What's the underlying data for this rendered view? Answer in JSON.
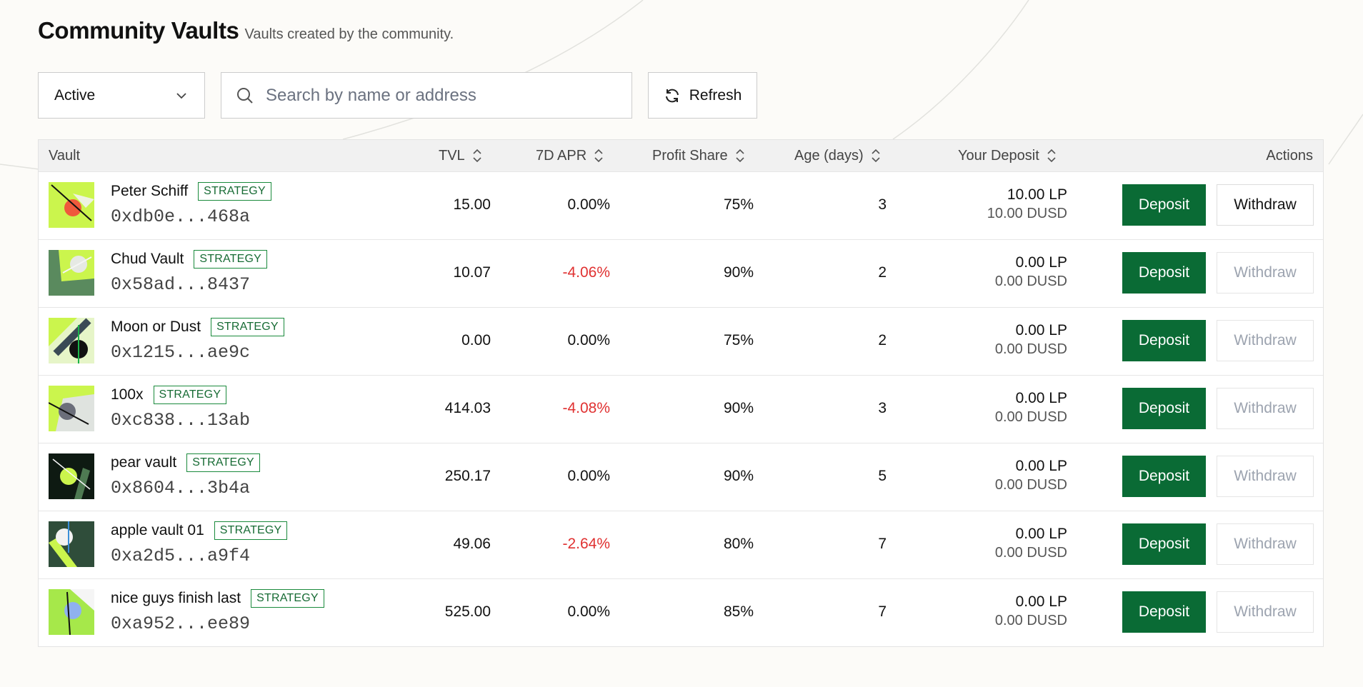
{
  "header": {
    "title": "Community Vaults",
    "subtitle": "Vaults created by the community."
  },
  "toolbar": {
    "filter_value": "Active",
    "search_placeholder": "Search by name or address",
    "refresh_label": "Refresh"
  },
  "table": {
    "columns": {
      "vault": "Vault",
      "tvl": "TVL",
      "apr": "7D APR",
      "profit_share": "Profit Share",
      "age": "Age (days)",
      "your_deposit": "Your Deposit",
      "actions": "Actions"
    },
    "badge_label": "STRATEGY",
    "deposit_label": "Deposit",
    "withdraw_label": "Withdraw",
    "rows": [
      {
        "name": "Peter Schiff",
        "address": "0xdb0e...468a",
        "tvl": "15.00",
        "apr": "0.00%",
        "profit_share": "75%",
        "age": "3",
        "deposit_lp": "10.00 LP",
        "deposit_usd": "10.00 DUSD"
      },
      {
        "name": "Chud Vault",
        "address": "0x58ad...8437",
        "tvl": "10.07",
        "apr": "-4.06%",
        "profit_share": "90%",
        "age": "2",
        "deposit_lp": "0.00 LP",
        "deposit_usd": "0.00 DUSD"
      },
      {
        "name": "Moon or Dust",
        "address": "0x1215...ae9c",
        "tvl": "0.00",
        "apr": "0.00%",
        "profit_share": "75%",
        "age": "2",
        "deposit_lp": "0.00 LP",
        "deposit_usd": "0.00 DUSD"
      },
      {
        "name": "100x",
        "address": "0xc838...13ab",
        "tvl": "414.03",
        "apr": "-4.08%",
        "profit_share": "90%",
        "age": "3",
        "deposit_lp": "0.00 LP",
        "deposit_usd": "0.00 DUSD"
      },
      {
        "name": "pear vault",
        "address": "0x8604...3b4a",
        "tvl": "250.17",
        "apr": "0.00%",
        "profit_share": "90%",
        "age": "5",
        "deposit_lp": "0.00 LP",
        "deposit_usd": "0.00 DUSD"
      },
      {
        "name": "apple vault 01",
        "address": "0xa2d5...a9f4",
        "tvl": "49.06",
        "apr": "-2.64%",
        "profit_share": "80%",
        "age": "7",
        "deposit_lp": "0.00 LP",
        "deposit_usd": "0.00 DUSD"
      },
      {
        "name": "nice guys finish last",
        "address": "0xa952...ee89",
        "tvl": "525.00",
        "apr": "0.00%",
        "profit_share": "85%",
        "age": "7",
        "deposit_lp": "0.00 LP",
        "deposit_usd": "0.00 DUSD"
      }
    ]
  },
  "colors": {
    "accent": "#0a6b35",
    "negative": "#e03131",
    "badge": "#1a8a3c"
  }
}
